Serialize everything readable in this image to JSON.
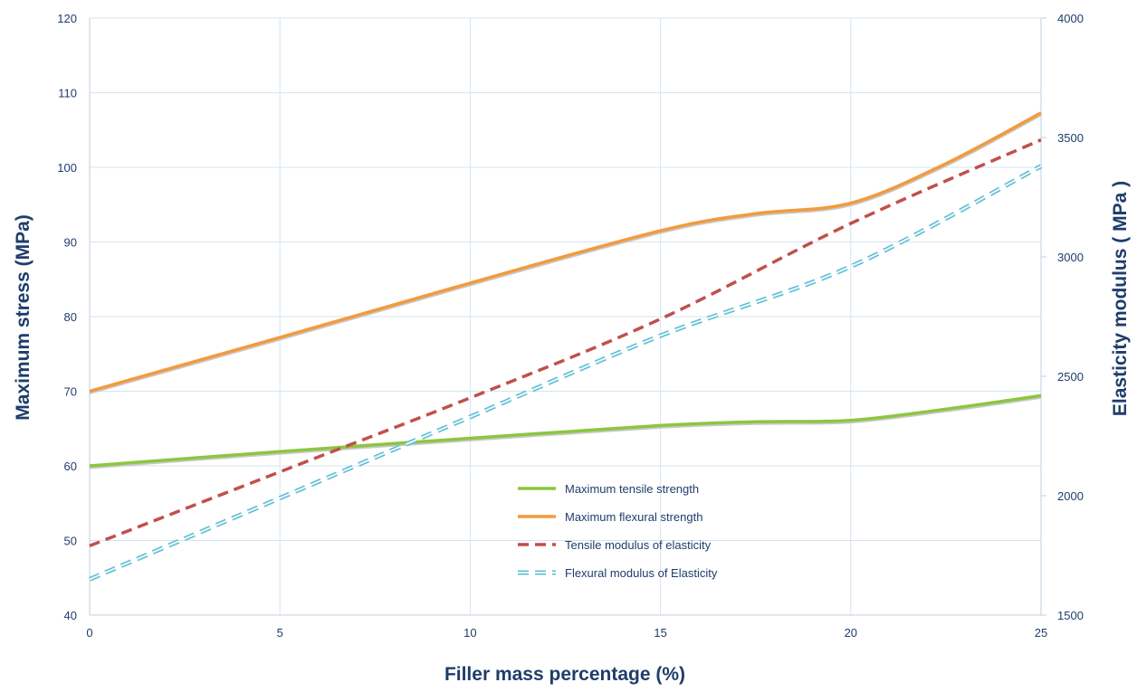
{
  "chart_data": {
    "type": "line",
    "title": "",
    "xlabel": "Filler mass percentage (%)",
    "ylabel": "Maximum stress (MPa)",
    "y2label": "Elasticity modulus  ( MPa )",
    "x": [
      0,
      5,
      10,
      15,
      20,
      25
    ],
    "xlim": [
      0,
      25
    ],
    "ylim": [
      40,
      120
    ],
    "y2lim": [
      1500,
      4000
    ],
    "x_ticks": [
      0,
      5,
      10,
      15,
      20,
      25
    ],
    "y_ticks": [
      40,
      50,
      60,
      70,
      80,
      90,
      100,
      110,
      120
    ],
    "y2_ticks": [
      1500,
      2000,
      2500,
      3000,
      3500,
      4000
    ],
    "grid": true,
    "legend_position": "center-bottom",
    "series": [
      {
        "name": "Maximum tensile strength",
        "axis": "left",
        "style": "solid",
        "color": "#8cc63f",
        "x": [
          0,
          5,
          10,
          15,
          17.5,
          20,
          22.5,
          25
        ],
        "values": [
          60,
          61.9,
          63.7,
          65.4,
          65.9,
          66.1,
          67.6,
          69.4
        ]
      },
      {
        "name": "Maximum flexural strength",
        "axis": "left",
        "style": "solid",
        "color": "#f39a3c",
        "x": [
          0,
          5,
          10,
          15,
          17.5,
          20,
          22.5,
          25
        ],
        "values": [
          70,
          77.2,
          84.5,
          91.5,
          93.8,
          95.2,
          100.5,
          107.3
        ]
      },
      {
        "name": "Tensile modulus of elasticity",
        "axis": "right",
        "style": "dashed",
        "color": "#c0504d",
        "x": [
          0,
          5,
          10,
          15,
          20,
          25
        ],
        "values": [
          1790,
          2100,
          2410,
          2740,
          3140,
          3490
        ]
      },
      {
        "name": "Flexural modulus of Elasticity",
        "axis": "right",
        "style": "dashed-outline",
        "color": "#5bbcd3",
        "x": [
          0,
          5,
          10,
          15,
          20,
          25
        ],
        "values": [
          1650,
          1990,
          2330,
          2670,
          2960,
          3380
        ]
      }
    ]
  }
}
